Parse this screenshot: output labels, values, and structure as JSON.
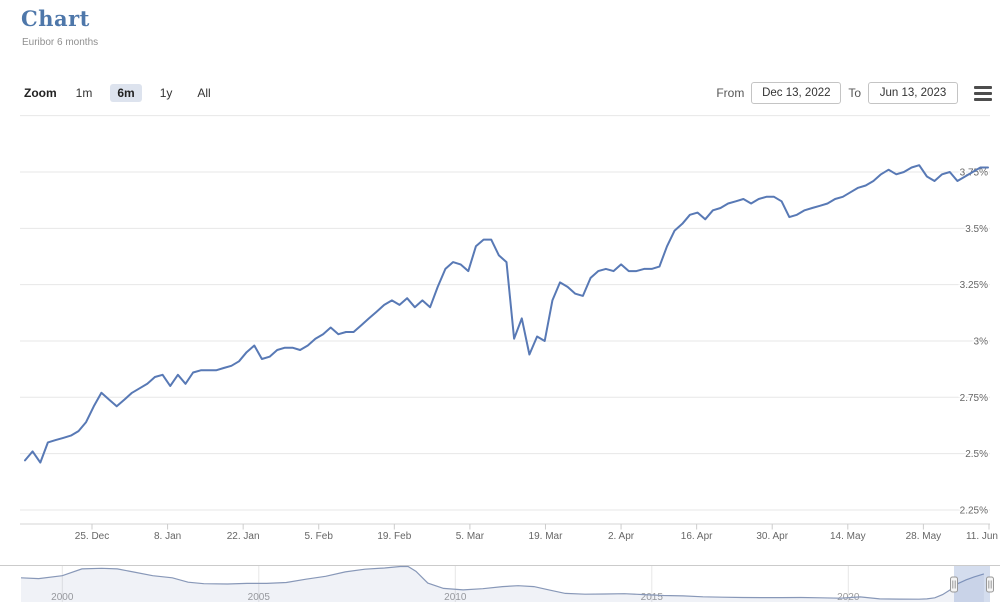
{
  "header": {
    "title": "Chart",
    "subtitle": "Euribor 6 months"
  },
  "toolbar": {
    "zoom_label": "Zoom",
    "range_buttons": [
      {
        "label": "1m",
        "selected": false
      },
      {
        "label": "6m",
        "selected": true
      },
      {
        "label": "1y",
        "selected": false
      },
      {
        "label": "All",
        "selected": false
      }
    ],
    "from_label": "From",
    "from_value": "Dec 13, 2022",
    "to_label": "To",
    "to_value": "Jun 13, 2023"
  },
  "colors": {
    "title_blue": "#4e77aa",
    "series_line": "#5879b5",
    "grid": "#e7e7e7",
    "axis_line": "#d6d6d6",
    "tick": "#cccccc",
    "axis_label": "#666666",
    "nav_line": "#8898b8",
    "nav_fill": "rgba(130,150,190,0.12)",
    "nav_outline": "#cbcbcb",
    "nav_grid": "#e6e6e6",
    "mask": "rgba(102,133,194,0.28)",
    "selected_button_bg": "#dde3ee"
  },
  "chart_data": {
    "type": "line",
    "title": "Chart",
    "subtitle": "Euribor 6 months",
    "ylabel": "",
    "xlabel": "",
    "ylim": [
      2.2,
      4.0
    ],
    "grid": "horizontal",
    "yaxis": {
      "position": "right",
      "ticks": [
        {
          "value": 2.25,
          "label": "2.25%"
        },
        {
          "value": 2.5,
          "label": "2.5%"
        },
        {
          "value": 2.75,
          "label": "2.75%"
        },
        {
          "value": 3,
          "label": "3%"
        },
        {
          "value": 3.25,
          "label": "3.25%"
        },
        {
          "value": 3.5,
          "label": "3.5%"
        },
        {
          "value": 3.75,
          "label": "3.75%"
        },
        {
          "value": 4,
          "label": ""
        }
      ]
    },
    "xaxis": {
      "ticks": [
        "25. Dec",
        "8. Jan",
        "22. Jan",
        "5. Feb",
        "19. Feb",
        "5. Mar",
        "19. Mar",
        "2. Apr",
        "16. Apr",
        "30. Apr",
        "14. May",
        "28. May",
        "11. Jun"
      ]
    },
    "series": [
      {
        "name": "Euribor 6 months",
        "unit": "%",
        "dates": [
          "2022-12-13",
          "2022-12-14",
          "2022-12-15",
          "2022-12-16",
          "2022-12-19",
          "2022-12-20",
          "2022-12-21",
          "2022-12-22",
          "2022-12-23",
          "2022-12-27",
          "2022-12-28",
          "2022-12-29",
          "2022-12-30",
          "2023-01-02",
          "2023-01-03",
          "2023-01-04",
          "2023-01-05",
          "2023-01-06",
          "2023-01-09",
          "2023-01-10",
          "2023-01-11",
          "2023-01-12",
          "2023-01-13",
          "2023-01-16",
          "2023-01-17",
          "2023-01-18",
          "2023-01-19",
          "2023-01-20",
          "2023-01-23",
          "2023-01-24",
          "2023-01-25",
          "2023-01-26",
          "2023-01-27",
          "2023-01-30",
          "2023-01-31",
          "2023-02-01",
          "2023-02-02",
          "2023-02-03",
          "2023-02-06",
          "2023-02-07",
          "2023-02-08",
          "2023-02-09",
          "2023-02-10",
          "2023-02-13",
          "2023-02-14",
          "2023-02-15",
          "2023-02-16",
          "2023-02-17",
          "2023-02-20",
          "2023-02-21",
          "2023-02-22",
          "2023-02-23",
          "2023-02-24",
          "2023-02-27",
          "2023-02-28",
          "2023-03-01",
          "2023-03-02",
          "2023-03-03",
          "2023-03-06",
          "2023-03-07",
          "2023-03-08",
          "2023-03-09",
          "2023-03-10",
          "2023-03-13",
          "2023-03-14",
          "2023-03-15",
          "2023-03-16",
          "2023-03-17",
          "2023-03-20",
          "2023-03-21",
          "2023-03-22",
          "2023-03-23",
          "2023-03-24",
          "2023-03-27",
          "2023-03-28",
          "2023-03-29",
          "2023-03-30",
          "2023-03-31",
          "2023-04-03",
          "2023-04-04",
          "2023-04-05",
          "2023-04-06",
          "2023-04-11",
          "2023-04-12",
          "2023-04-13",
          "2023-04-14",
          "2023-04-17",
          "2023-04-18",
          "2023-04-19",
          "2023-04-20",
          "2023-04-21",
          "2023-04-24",
          "2023-04-25",
          "2023-04-26",
          "2023-04-27",
          "2023-04-28",
          "2023-05-02",
          "2023-05-03",
          "2023-05-04",
          "2023-05-05",
          "2023-05-08",
          "2023-05-09",
          "2023-05-10",
          "2023-05-11",
          "2023-05-12",
          "2023-05-15",
          "2023-05-16",
          "2023-05-17",
          "2023-05-18",
          "2023-05-19",
          "2023-05-22",
          "2023-05-23",
          "2023-05-24",
          "2023-05-25",
          "2023-05-26",
          "2023-05-29",
          "2023-05-30",
          "2023-05-31",
          "2023-06-01",
          "2023-06-02",
          "2023-06-05",
          "2023-06-06",
          "2023-06-07",
          "2023-06-08",
          "2023-06-09",
          "2023-06-12",
          "2023-06-13"
        ],
        "values": [
          2.47,
          2.51,
          2.46,
          2.55,
          2.56,
          2.57,
          2.58,
          2.6,
          2.64,
          2.71,
          2.77,
          2.74,
          2.71,
          2.74,
          2.77,
          2.79,
          2.81,
          2.84,
          2.85,
          2.8,
          2.85,
          2.81,
          2.86,
          2.87,
          2.87,
          2.87,
          2.88,
          2.89,
          2.91,
          2.95,
          2.98,
          2.92,
          2.93,
          2.96,
          2.97,
          2.97,
          2.96,
          2.98,
          3.01,
          3.03,
          3.06,
          3.03,
          3.04,
          3.04,
          3.07,
          3.1,
          3.13,
          3.16,
          3.18,
          3.16,
          3.19,
          3.15,
          3.18,
          3.15,
          3.24,
          3.32,
          3.35,
          3.34,
          3.31,
          3.42,
          3.45,
          3.45,
          3.38,
          3.35,
          3.01,
          3.1,
          2.94,
          3.02,
          3.0,
          3.18,
          3.26,
          3.24,
          3.21,
          3.2,
          3.28,
          3.31,
          3.32,
          3.31,
          3.34,
          3.31,
          3.31,
          3.32,
          3.32,
          3.33,
          3.42,
          3.49,
          3.52,
          3.56,
          3.57,
          3.54,
          3.58,
          3.59,
          3.61,
          3.62,
          3.63,
          3.61,
          3.63,
          3.64,
          3.64,
          3.62,
          3.55,
          3.56,
          3.58,
          3.59,
          3.6,
          3.61,
          3.63,
          3.64,
          3.66,
          3.68,
          3.69,
          3.71,
          3.74,
          3.76,
          3.74,
          3.75,
          3.77,
          3.78,
          3.73,
          3.71,
          3.74,
          3.75,
          3.71,
          3.73,
          3.75,
          3.77,
          3.77
        ]
      }
    ]
  },
  "navigator": {
    "year_ticks": [
      {
        "label": "2000",
        "year": 2000
      },
      {
        "label": "2005",
        "year": 2005
      },
      {
        "label": "2010",
        "year": 2010
      },
      {
        "label": "2015",
        "year": 2015
      },
      {
        "label": "2020",
        "year": 2020
      }
    ],
    "series": {
      "years": [
        1998.95,
        1999.4,
        2000.0,
        2000.5,
        2001.0,
        2001.4,
        2001.8,
        2002.3,
        2002.8,
        2003.2,
        2003.6,
        2004.2,
        2004.7,
        2005.2,
        2005.7,
        2006.2,
        2006.7,
        2007.2,
        2007.7,
        2008.2,
        2008.6,
        2008.8,
        2009.0,
        2009.3,
        2009.7,
        2010.2,
        2010.7,
        2011.2,
        2011.6,
        2012.0,
        2012.4,
        2012.8,
        2013.3,
        2013.8,
        2014.3,
        2014.8,
        2015.3,
        2015.8,
        2016.3,
        2016.8,
        2017.3,
        2017.8,
        2018.3,
        2018.8,
        2019.3,
        2019.8,
        2020.3,
        2020.8,
        2021.3,
        2021.8,
        2022.0,
        2022.2,
        2022.4,
        2022.6,
        2022.8,
        2023.0,
        2023.2,
        2023.45
      ],
      "values": [
        3.1,
        2.95,
        3.45,
        4.6,
        4.7,
        4.6,
        4.1,
        3.45,
        3.1,
        2.35,
        2.1,
        2.05,
        2.15,
        2.15,
        2.3,
        2.85,
        3.35,
        4.1,
        4.55,
        4.75,
        5.25,
        5.45,
        4.2,
        2.2,
        1.3,
        1.05,
        1.25,
        1.6,
        1.75,
        1.6,
        1.0,
        0.45,
        0.32,
        0.35,
        0.4,
        0.25,
        0.1,
        0.02,
        -0.12,
        -0.2,
        -0.25,
        -0.27,
        -0.27,
        -0.25,
        -0.3,
        -0.36,
        -0.15,
        -0.48,
        -0.52,
        -0.53,
        -0.48,
        -0.3,
        0.25,
        1.1,
        2.15,
        2.75,
        3.25,
        3.75
      ]
    },
    "selected_range": "Dec 13, 2022 - Jun 13, 2023"
  }
}
